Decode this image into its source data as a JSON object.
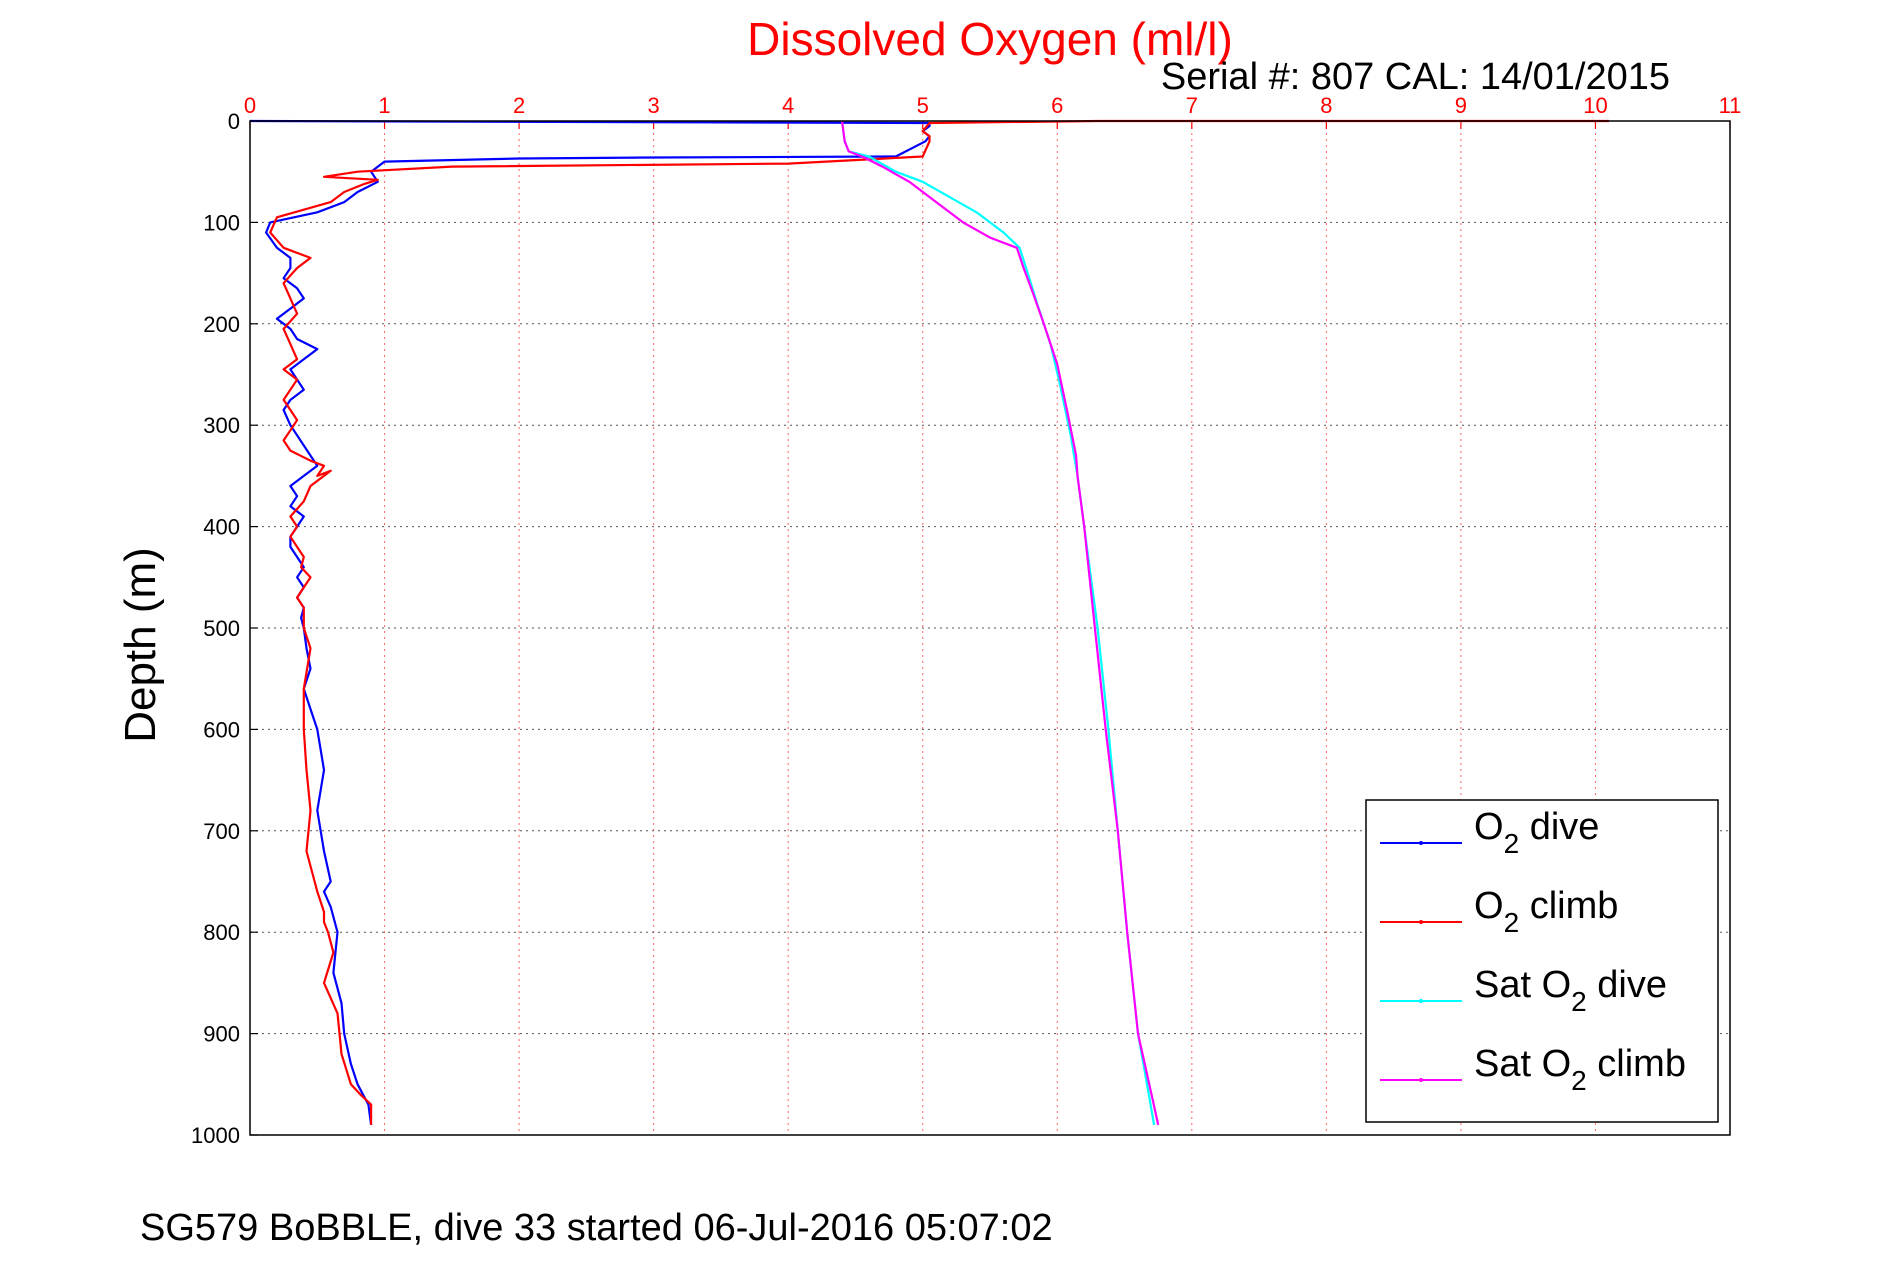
{
  "chart_data": {
    "type": "line",
    "title": "Dissolved Oxygen (ml/l)",
    "subtitle": "Serial #: 807  CAL: 14/01/2015",
    "ylabel": "Depth (m)",
    "footer": "SG579 BoBBLE, dive 33 started 06-Jul-2016 05:07:02",
    "xlim": [
      0,
      11
    ],
    "ylim": [
      0,
      1000
    ],
    "y_reversed": true,
    "x_axis_position": "top",
    "grid": true,
    "x_ticks": [
      "0",
      "1",
      "2",
      "3",
      "4",
      "5",
      "6",
      "7",
      "8",
      "9",
      "10",
      "11"
    ],
    "y_ticks": [
      "0",
      "100",
      "200",
      "300",
      "400",
      "500",
      "600",
      "700",
      "800",
      "900",
      "1000"
    ],
    "legend_placement": "bottom-right",
    "colors": {
      "title": "#ff0000",
      "x_ticks": "#ff0000",
      "grid": "#ff0000"
    },
    "series": [
      {
        "name": "O2 dive",
        "label_main": "O",
        "label_sub": "2",
        "label_rest": " dive",
        "color": "#0000ff",
        "x": [
          0.0,
          5.05,
          5.05,
          5.0,
          5.05,
          5.02,
          4.8,
          3.0,
          2.0,
          1.0,
          0.9,
          0.95,
          0.8,
          0.7,
          0.5,
          0.15,
          0.12,
          0.2,
          0.3,
          0.3,
          0.25,
          0.35,
          0.4,
          0.3,
          0.2,
          0.3,
          0.35,
          0.5,
          0.4,
          0.3,
          0.35,
          0.4,
          0.3,
          0.25,
          0.3,
          0.35,
          0.4,
          0.45,
          0.5,
          0.4,
          0.3,
          0.35,
          0.3,
          0.4,
          0.35,
          0.3,
          0.3,
          0.35,
          0.4,
          0.35,
          0.4,
          0.35,
          0.4,
          0.38,
          0.4,
          0.42,
          0.45,
          0.4,
          0.45,
          0.5,
          0.55,
          0.5,
          0.55,
          0.6,
          0.55,
          0.6,
          0.65,
          0.62,
          0.68,
          0.7,
          0.75,
          0.8,
          0.88,
          0.9
        ],
        "y": [
          0,
          2,
          5,
          10,
          15,
          20,
          35,
          36,
          37,
          40,
          50,
          60,
          70,
          80,
          90,
          100,
          110,
          125,
          135,
          145,
          155,
          165,
          175,
          185,
          195,
          205,
          215,
          225,
          235,
          245,
          255,
          265,
          275,
          285,
          300,
          310,
          320,
          330,
          340,
          350,
          360,
          370,
          380,
          390,
          400,
          410,
          420,
          430,
          440,
          450,
          460,
          470,
          480,
          490,
          500,
          520,
          540,
          560,
          580,
          600,
          640,
          680,
          720,
          750,
          760,
          775,
          800,
          840,
          870,
          900,
          930,
          950,
          970,
          990
        ]
      },
      {
        "name": "O2 climb",
        "label_main": "O",
        "label_sub": "2",
        "label_rest": " climb",
        "color": "#ff0000",
        "x": [
          10.1,
          6.3,
          5.05,
          5.0,
          5.05,
          5.05,
          5.0,
          4.0,
          1.5,
          0.8,
          0.55,
          0.95,
          0.85,
          0.7,
          0.6,
          0.2,
          0.15,
          0.25,
          0.45,
          0.35,
          0.25,
          0.3,
          0.35,
          0.25,
          0.3,
          0.35,
          0.25,
          0.35,
          0.3,
          0.25,
          0.3,
          0.35,
          0.3,
          0.25,
          0.3,
          0.45,
          0.55,
          0.5,
          0.6,
          0.45,
          0.4,
          0.3,
          0.35,
          0.3,
          0.35,
          0.4,
          0.38,
          0.45,
          0.4,
          0.35,
          0.4,
          0.4,
          0.45,
          0.4,
          0.4,
          0.42,
          0.45,
          0.42,
          0.5,
          0.55,
          0.55,
          0.58,
          0.62,
          0.55,
          0.65,
          0.68,
          0.75,
          0.82,
          0.9,
          0.9
        ],
        "y": [
          0,
          0,
          2,
          10,
          15,
          20,
          35,
          42,
          45,
          50,
          55,
          58,
          62,
          70,
          80,
          95,
          110,
          125,
          135,
          145,
          160,
          175,
          190,
          205,
          220,
          235,
          245,
          255,
          265,
          275,
          285,
          295,
          305,
          315,
          325,
          335,
          340,
          350,
          345,
          360,
          375,
          390,
          400,
          410,
          420,
          430,
          440,
          450,
          460,
          470,
          480,
          500,
          520,
          560,
          600,
          640,
          680,
          720,
          760,
          780,
          790,
          800,
          820,
          850,
          880,
          920,
          950,
          960,
          970,
          990
        ]
      },
      {
        "name": "Sat O2 dive",
        "label_main": "Sat O",
        "label_sub": "2",
        "label_rest": " dive",
        "color": "#00ffff",
        "x": [
          4.4,
          4.42,
          4.45,
          4.6,
          4.8,
          5.0,
          5.2,
          5.4,
          5.6,
          5.72,
          5.78,
          5.85,
          5.95,
          6.02,
          6.1,
          6.15,
          6.2,
          6.3,
          6.38,
          6.45,
          6.52,
          6.6,
          6.68,
          6.72
        ],
        "y": [
          0,
          20,
          30,
          35,
          50,
          60,
          75,
          90,
          110,
          125,
          150,
          180,
          220,
          260,
          310,
          350,
          400,
          500,
          600,
          700,
          800,
          900,
          960,
          990
        ]
      },
      {
        "name": "Sat O2 climb",
        "label_main": "Sat O",
        "label_sub": "2",
        "label_rest": " climb",
        "color": "#ff00ff",
        "x": [
          4.4,
          4.42,
          4.45,
          4.55,
          4.7,
          4.9,
          5.1,
          5.3,
          5.5,
          5.7,
          5.75,
          5.82,
          5.9,
          6.0,
          6.08,
          6.14,
          6.15,
          6.2,
          6.28,
          6.36,
          6.45,
          6.52,
          6.6,
          6.7,
          6.75
        ],
        "y": [
          0,
          20,
          30,
          35,
          45,
          60,
          80,
          100,
          115,
          125,
          145,
          170,
          200,
          240,
          290,
          330,
          350,
          400,
          500,
          600,
          700,
          800,
          900,
          960,
          990
        ]
      }
    ]
  }
}
